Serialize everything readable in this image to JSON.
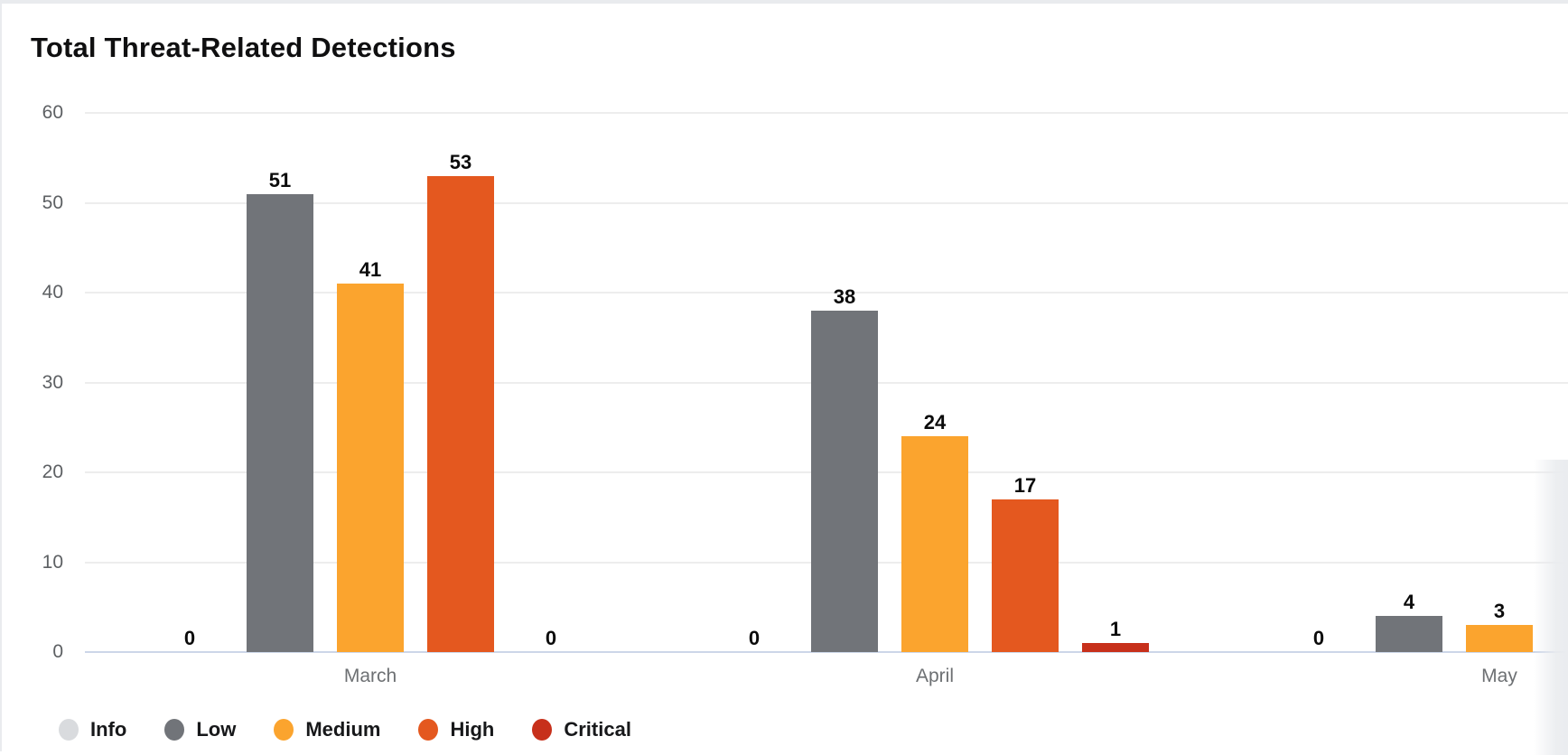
{
  "title": "Total Threat-Related Detections",
  "chart_data": {
    "type": "bar",
    "title": "Total Threat-Related Detections",
    "categories": [
      "March",
      "April",
      "May"
    ],
    "series": [
      {
        "name": "Info",
        "color": "#d9dbde",
        "values": [
          0,
          0,
          0
        ]
      },
      {
        "name": "Low",
        "color": "#717479",
        "values": [
          51,
          38,
          4
        ]
      },
      {
        "name": "Medium",
        "color": "#fba42e",
        "values": [
          41,
          24,
          3
        ]
      },
      {
        "name": "High",
        "color": "#e4581f",
        "values": [
          53,
          17,
          null
        ]
      },
      {
        "name": "Critical",
        "color": "#c7301b",
        "values": [
          0,
          1,
          null
        ]
      }
    ],
    "xlabel": "",
    "ylabel": "",
    "ylim": [
      0,
      60
    ],
    "yticks": [
      0,
      10,
      20,
      30,
      40,
      50,
      60
    ],
    "grid": true,
    "value_labels": true,
    "legend_position": "bottom",
    "note": "May High and Critical bars are clipped beyond the right edge of the viewport"
  },
  "colors": {
    "page_background": "#e9ebee",
    "card_background": "#ffffff",
    "gridline": "#ededed",
    "axis_line": "#ccd6e8",
    "tick_text": "#5d6063",
    "month_text": "#6d7073",
    "value_text": "#0b0b0b",
    "title_text": "#0f0f10"
  }
}
